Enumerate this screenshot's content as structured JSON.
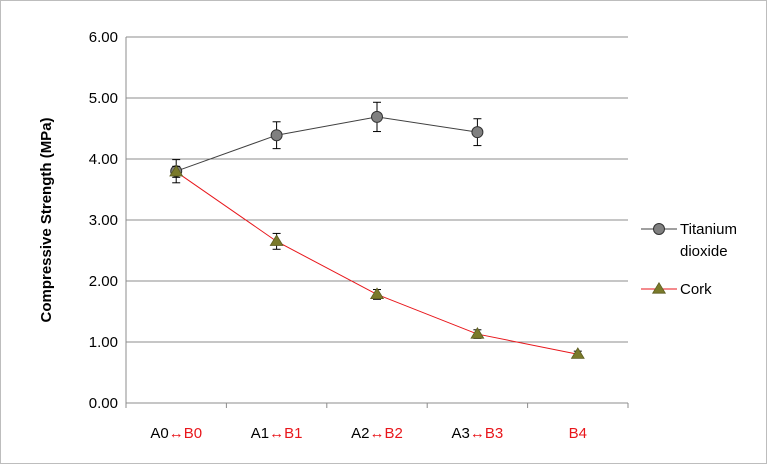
{
  "chart_data": {
    "type": "line",
    "ylabel": "Compressive Strength (MPa)",
    "ylim": [
      0,
      6
    ],
    "yticks": [
      "0.00",
      "1.00",
      "2.00",
      "3.00",
      "4.00",
      "5.00",
      "6.00"
    ],
    "categories": [
      {
        "a": "A0",
        "arrow": "↔",
        "b": "B0"
      },
      {
        "a": "A1",
        "arrow": "↔",
        "b": "B1"
      },
      {
        "a": "A2",
        "arrow": "↔",
        "b": "B2"
      },
      {
        "a": "A3",
        "arrow": "↔",
        "b": "B3"
      },
      {
        "a": "",
        "arrow": "",
        "b": "B4"
      }
    ],
    "category_colors": {
      "a": "#000000",
      "b": "#e8161b"
    },
    "grid": "horizontal",
    "legend_position": "right",
    "series": [
      {
        "name": "Titanium dioxide",
        "legend_lines": [
          "Titanium",
          "dioxide"
        ],
        "marker": "circle",
        "color": "#404040",
        "marker_fill": "#808080",
        "values": [
          3.8,
          4.39,
          4.69,
          4.44,
          null
        ],
        "errors": [
          0.19,
          0.22,
          0.24,
          0.22,
          null
        ]
      },
      {
        "name": "Cork",
        "legend_lines": [
          "Cork"
        ],
        "marker": "triangle",
        "color": "#e8161b",
        "marker_fill": "#7a7a2a",
        "values": [
          3.79,
          2.65,
          1.78,
          1.13,
          0.8
        ],
        "errors": [
          0.09,
          0.13,
          0.08,
          0.07,
          0.05
        ]
      }
    ]
  }
}
